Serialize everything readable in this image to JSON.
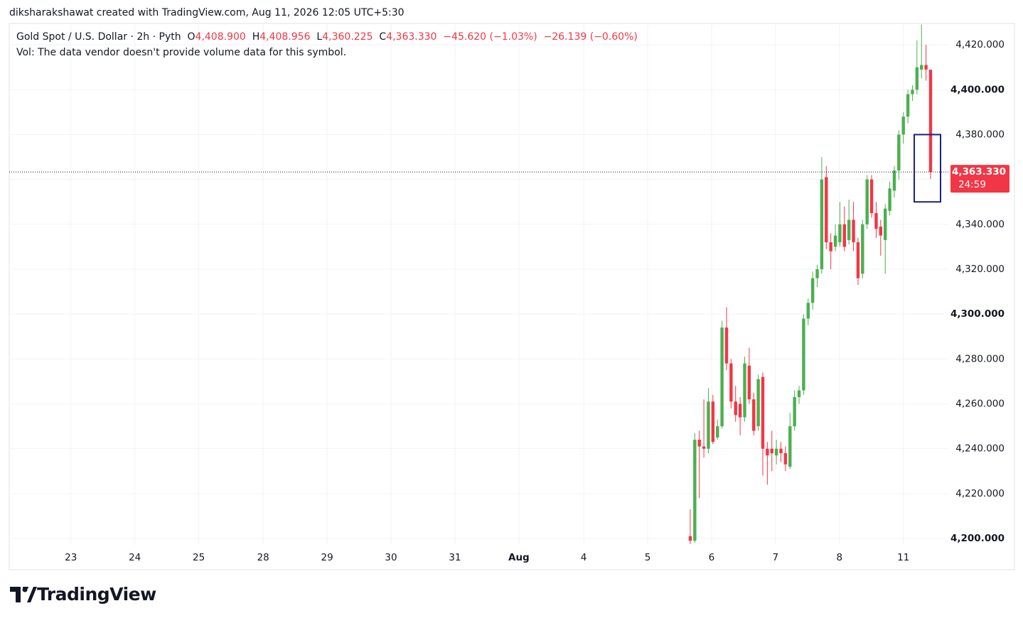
{
  "header": "diksharakshawat created with TradingView.com, Aug 11, 2026 12:05 UTC+5:30",
  "legend": {
    "symbol": "Gold Spot / U.S. Dollar · 2h · Pyth",
    "open_key": "O",
    "open": "4,408.900",
    "high_key": "H",
    "high": "4,408.956",
    "low_key": "L",
    "low": "4,360.225",
    "close_key": "C",
    "close": "4,363.330",
    "change": "−45.620 (−1.03%)",
    "change2": "−26.139 (−0.60%)"
  },
  "volume_note": "Vol: The data vendor doesn't provide volume data for this symbol.",
  "logo": "TradingView",
  "chart_data": {
    "type": "candlestick",
    "up_color": "#4caf50",
    "down_color": "#f23645",
    "grid": true,
    "open": [
      4201,
      4199,
      4244,
      4241,
      4240,
      4261,
      4245,
      4250,
      4294,
      4278,
      4261,
      4260,
      4254,
      4277,
      4262,
      4250,
      4272,
      4240,
      4240,
      4237,
      4240,
      4238,
      4232,
      4250,
      4263,
      4266,
      4298,
      4305,
      4316,
      4320,
      4361,
      4332,
      4330,
      4332,
      4340,
      4333,
      4342,
      4332,
      4318,
      4340,
      4360,
      4345,
      4339,
      4333,
      4346,
      4355,
      4364,
      4380,
      4388,
      4398,
      4400,
      4409,
      4411,
      4408.9
    ],
    "high": [
      4213,
      4247,
      4248,
      4262,
      4267,
      4264,
      4253,
      4297,
      4303,
      4280,
      4268,
      4263,
      4281,
      4285,
      4265,
      4273,
      4274,
      4243,
      4248,
      4244,
      4243,
      4241,
      4256,
      4266,
      4268,
      4300,
      4307,
      4319,
      4322,
      4370,
      4366,
      4336,
      4340,
      4350,
      4348,
      4351,
      4350,
      4334,
      4342,
      4362,
      4362,
      4350,
      4342,
      4349,
      4359,
      4366,
      4382,
      4390,
      4400,
      4402,
      4422,
      4429,
      4420,
      4408.956
    ],
    "low": [
      4197.5,
      4198,
      4218,
      4236,
      4238,
      4242,
      4244,
      4249,
      4275,
      4258,
      4252,
      4246,
      4252,
      4260,
      4246,
      4248,
      4228,
      4224,
      4230,
      4233,
      4234,
      4230,
      4231,
      4248,
      4260,
      4264,
      4295,
      4302,
      4312,
      4318,
      4329,
      4320,
      4328,
      4330,
      4328,
      4331,
      4328,
      4313,
      4316,
      4338,
      4343,
      4334,
      4326,
      4318,
      4344,
      4352,
      4360,
      4376,
      4385,
      4395,
      4398,
      4405,
      4404,
      4360.225
    ],
    "close": [
      4199,
      4244,
      4241,
      4240,
      4261,
      4243,
      4250,
      4294,
      4278,
      4261,
      4255,
      4254,
      4278,
      4262,
      4248,
      4271,
      4240,
      4237,
      4238,
      4240,
      4238,
      4233,
      4250,
      4263,
      4266,
      4298,
      4305,
      4316,
      4320,
      4360,
      4332,
      4328,
      4335,
      4340,
      4330,
      4342,
      4332,
      4316,
      4340,
      4360,
      4345,
      4338,
      4335,
      4347,
      4356,
      4364,
      4380,
      4388,
      4398,
      4400,
      4410,
      4411,
      4409,
      4363.33
    ],
    "xlim": [
      -150.2,
      57.08
    ],
    "ylim": [
      4197.15,
      4428.9
    ],
    "xticks": [
      {
        "value": -136.6,
        "label": "23"
      },
      {
        "value": -122.5,
        "label": "24"
      },
      {
        "value": -108.4,
        "label": "25"
      },
      {
        "value": -94.2,
        "label": "28"
      },
      {
        "value": -80.1,
        "label": "29"
      },
      {
        "value": -66.0,
        "label": "30"
      },
      {
        "value": -51.9,
        "label": "31"
      },
      {
        "value": -37.8,
        "label": "Aug"
      },
      {
        "value": -23.5,
        "label": "4"
      },
      {
        "value": -9.4,
        "label": "5"
      },
      {
        "value": 4.7,
        "label": "6"
      },
      {
        "value": 18.8,
        "label": "7"
      },
      {
        "value": 32.9,
        "label": "8"
      },
      {
        "value": 47.0,
        "label": "11"
      }
    ],
    "yticks": [
      {
        "value": 4200,
        "label": "4,200.000"
      },
      {
        "value": 4220,
        "label": "4,220.000"
      },
      {
        "value": 4240,
        "label": "4,240.000"
      },
      {
        "value": 4260,
        "label": "4,260.000"
      },
      {
        "value": 4280,
        "label": "4,280.000"
      },
      {
        "value": 4300,
        "label": "4,300.000"
      },
      {
        "value": 4320,
        "label": "4,320.000"
      },
      {
        "value": 4340,
        "label": "4,340.000"
      },
      {
        "value": 4360,
        "label": "4,360.000"
      },
      {
        "value": 4380,
        "label": "4,380.000"
      },
      {
        "value": 4400,
        "label": "4,400.000"
      },
      {
        "value": 4420,
        "label": "4,420.000"
      }
    ],
    "last_price": {
      "value": 4363.33,
      "label": "4,363.330",
      "countdown": "24:59",
      "color": "#f23645"
    },
    "box": {
      "x_start": 49.4,
      "x_end": 55.2,
      "y_top": 4380,
      "y_bottom": 4350,
      "color": "#1a237e"
    }
  }
}
